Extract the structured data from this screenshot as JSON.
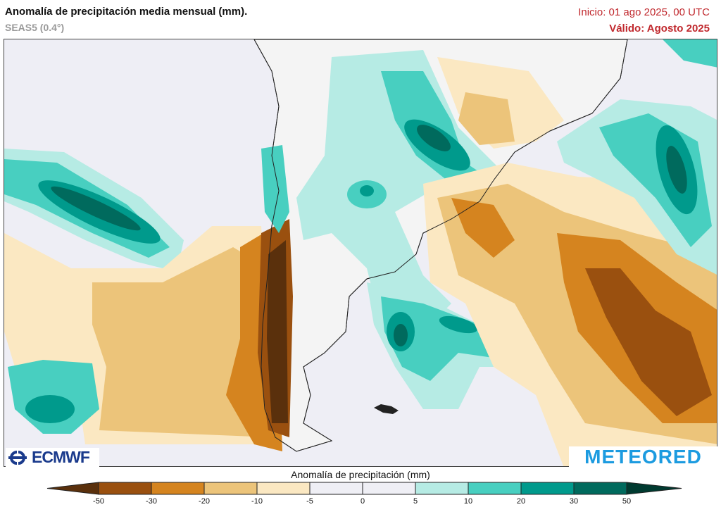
{
  "header": {
    "title": "Anomalía de precipitación media mensual (mm).",
    "subtitle": "SEAS5 (0.4°)",
    "init": "Inicio: 01 ago 2025, 00 UTC",
    "valid": "Válido: Agosto 2025"
  },
  "logos": {
    "left": "ECMWF",
    "right": "METEORED"
  },
  "colorbar": {
    "title": "Anomalía de precipitación (mm)",
    "ticks": [
      "-50",
      "-30",
      "-20",
      "-10",
      "-5",
      "0",
      "5",
      "10",
      "20",
      "30",
      "50"
    ],
    "under_color": "#5a300c",
    "over_color": "#003a30",
    "colors": [
      "#9a500f",
      "#d5841f",
      "#ecc47a",
      "#fbe8c2",
      "#efeff5",
      "#efeff5",
      "#b6ebe4",
      "#48cfc0",
      "#009a8c",
      "#006a5d"
    ]
  },
  "map": {
    "background_color": "#eeeef5",
    "land_color": "#f3f3f3"
  }
}
